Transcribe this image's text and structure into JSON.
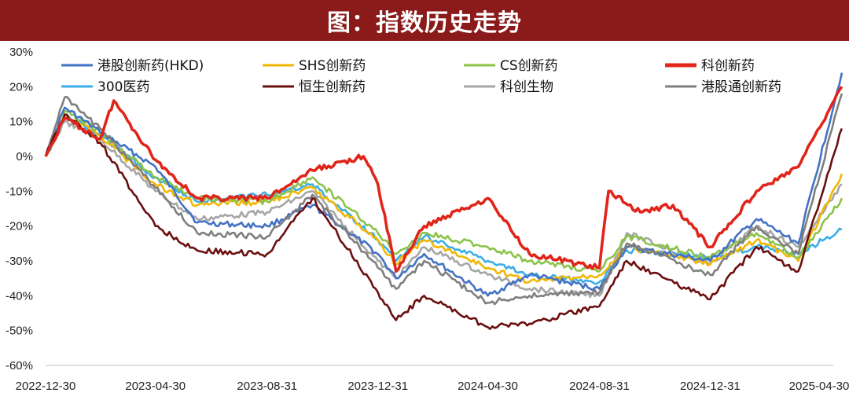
{
  "header": {
    "title": "图：指数历史走势"
  },
  "colors": {
    "banner": "#8B1A1A"
  },
  "chart_data": {
    "type": "line",
    "x_ticks": [
      "2022-12-30",
      "2023-04-30",
      "2023-08-31",
      "2023-12-31",
      "2024-04-30",
      "2024-08-31",
      "2024-12-31",
      "2025-04-30"
    ],
    "y_ticks": [
      "30%",
      "20%",
      "10%",
      "0%",
      "-10%",
      "-20%",
      "-30%",
      "-40%",
      "-50%",
      "-60%"
    ],
    "ylim": [
      -60,
      30
    ],
    "y_unit": "%",
    "legend_position": "top",
    "series": [
      {
        "name": "港股创新药(HKD)",
        "color": "#4472C4",
        "points": [
          [
            "2022-12-30",
            0
          ],
          [
            "2023-01-20",
            14
          ],
          [
            "2023-02-28",
            7
          ],
          [
            "2023-04-30",
            -3
          ],
          [
            "2023-06-15",
            -19
          ],
          [
            "2023-08-31",
            -20
          ],
          [
            "2023-10-20",
            -14
          ],
          [
            "2023-12-31",
            -28
          ],
          [
            "2024-01-20",
            -35
          ],
          [
            "2024-02-20",
            -28
          ],
          [
            "2024-04-30",
            -40
          ],
          [
            "2024-06-15",
            -34
          ],
          [
            "2024-08-31",
            -38
          ],
          [
            "2024-09-30",
            -26
          ],
          [
            "2024-12-31",
            -30
          ],
          [
            "2025-02-20",
            -18
          ],
          [
            "2025-04-07",
            -25
          ],
          [
            "2025-05-25",
            24
          ]
        ]
      },
      {
        "name": "SHS创新药",
        "color": "#F2B705",
        "points": [
          [
            "2022-12-30",
            0
          ],
          [
            "2023-01-20",
            12
          ],
          [
            "2023-02-28",
            6
          ],
          [
            "2023-04-30",
            -8
          ],
          [
            "2023-06-15",
            -14
          ],
          [
            "2023-08-31",
            -13
          ],
          [
            "2023-10-20",
            -9
          ],
          [
            "2023-12-31",
            -24
          ],
          [
            "2024-01-20",
            -31
          ],
          [
            "2024-02-20",
            -24
          ],
          [
            "2024-04-30",
            -32
          ],
          [
            "2024-06-15",
            -36
          ],
          [
            "2024-08-31",
            -34
          ],
          [
            "2024-09-30",
            -26
          ],
          [
            "2024-12-31",
            -31
          ],
          [
            "2025-02-20",
            -24
          ],
          [
            "2025-04-07",
            -30
          ],
          [
            "2025-05-25",
            -5
          ]
        ]
      },
      {
        "name": "CS创新药",
        "color": "#8BC34A",
        "points": [
          [
            "2022-12-30",
            0
          ],
          [
            "2023-01-20",
            13
          ],
          [
            "2023-02-28",
            7
          ],
          [
            "2023-04-30",
            -6
          ],
          [
            "2023-06-15",
            -12
          ],
          [
            "2023-08-31",
            -13
          ],
          [
            "2023-10-20",
            -6
          ],
          [
            "2023-12-31",
            -22
          ],
          [
            "2024-01-20",
            -28
          ],
          [
            "2024-02-20",
            -22
          ],
          [
            "2024-04-30",
            -26
          ],
          [
            "2024-06-15",
            -30
          ],
          [
            "2024-08-31",
            -33
          ],
          [
            "2024-09-30",
            -23
          ],
          [
            "2024-12-31",
            -29
          ],
          [
            "2025-02-20",
            -22
          ],
          [
            "2025-04-07",
            -29
          ],
          [
            "2025-05-25",
            -12
          ]
        ]
      },
      {
        "name": "科创新药",
        "color": "#E0251B",
        "points": [
          [
            "2022-12-30",
            0
          ],
          [
            "2023-01-20",
            11
          ],
          [
            "2023-02-28",
            5
          ],
          [
            "2023-03-15",
            16
          ],
          [
            "2023-04-30",
            -1
          ],
          [
            "2023-06-15",
            -12
          ],
          [
            "2023-08-31",
            -12
          ],
          [
            "2023-10-20",
            -4
          ],
          [
            "2023-12-15",
            0
          ],
          [
            "2023-12-31",
            -8
          ],
          [
            "2024-01-20",
            -33
          ],
          [
            "2024-02-20",
            -20
          ],
          [
            "2024-04-30",
            -12
          ],
          [
            "2024-06-15",
            -28
          ],
          [
            "2024-08-31",
            -32
          ],
          [
            "2024-09-10",
            -10
          ],
          [
            "2024-10-15",
            -16
          ],
          [
            "2024-11-20",
            -14
          ],
          [
            "2024-12-31",
            -26
          ],
          [
            "2025-02-20",
            -10
          ],
          [
            "2025-04-07",
            -3
          ],
          [
            "2025-05-25",
            20
          ]
        ]
      },
      {
        "name": "300医药",
        "color": "#3BAEE8",
        "points": [
          [
            "2022-12-30",
            0
          ],
          [
            "2023-01-20",
            12
          ],
          [
            "2023-02-28",
            6
          ],
          [
            "2023-04-30",
            -6
          ],
          [
            "2023-06-15",
            -13
          ],
          [
            "2023-08-31",
            -11
          ],
          [
            "2023-10-20",
            -8
          ],
          [
            "2023-12-31",
            -24
          ],
          [
            "2024-01-20",
            -30
          ],
          [
            "2024-02-20",
            -23
          ],
          [
            "2024-04-30",
            -30
          ],
          [
            "2024-06-15",
            -34
          ],
          [
            "2024-08-31",
            -36
          ],
          [
            "2024-09-30",
            -27
          ],
          [
            "2024-12-31",
            -29
          ],
          [
            "2025-02-20",
            -26
          ],
          [
            "2025-04-07",
            -28
          ],
          [
            "2025-05-25",
            -21
          ]
        ]
      },
      {
        "name": "恒生创新药",
        "color": "#6B0F0F",
        "points": [
          [
            "2022-12-30",
            0
          ],
          [
            "2023-01-20",
            12
          ],
          [
            "2023-02-28",
            4
          ],
          [
            "2023-04-30",
            -20
          ],
          [
            "2023-06-15",
            -27
          ],
          [
            "2023-08-31",
            -28
          ],
          [
            "2023-10-20",
            -12
          ],
          [
            "2023-12-31",
            -39
          ],
          [
            "2024-01-20",
            -47
          ],
          [
            "2024-02-20",
            -40
          ],
          [
            "2024-04-30",
            -49
          ],
          [
            "2024-06-15",
            -48
          ],
          [
            "2024-08-31",
            -43
          ],
          [
            "2024-09-30",
            -30
          ],
          [
            "2024-12-31",
            -41
          ],
          [
            "2025-02-20",
            -26
          ],
          [
            "2025-04-07",
            -33
          ],
          [
            "2025-05-25",
            8
          ]
        ]
      },
      {
        "name": "科创生物",
        "color": "#A6A6A6",
        "points": [
          [
            "2022-12-30",
            0
          ],
          [
            "2023-01-20",
            10
          ],
          [
            "2023-02-28",
            5
          ],
          [
            "2023-04-30",
            -10
          ],
          [
            "2023-06-15",
            -18
          ],
          [
            "2023-08-31",
            -16
          ],
          [
            "2023-10-20",
            -10
          ],
          [
            "2023-12-31",
            -30
          ],
          [
            "2024-01-20",
            -35
          ],
          [
            "2024-02-20",
            -26
          ],
          [
            "2024-04-30",
            -34
          ],
          [
            "2024-06-15",
            -38
          ],
          [
            "2024-08-31",
            -40
          ],
          [
            "2024-09-30",
            -22
          ],
          [
            "2024-12-31",
            -31
          ],
          [
            "2025-02-20",
            -20
          ],
          [
            "2025-04-07",
            -26
          ],
          [
            "2025-05-25",
            -8
          ]
        ]
      },
      {
        "name": "港股通创新药",
        "color": "#7F7F7F",
        "points": [
          [
            "2022-12-30",
            0
          ],
          [
            "2023-01-20",
            17
          ],
          [
            "2023-02-28",
            8
          ],
          [
            "2023-04-30",
            -9
          ],
          [
            "2023-06-15",
            -22
          ],
          [
            "2023-08-31",
            -23
          ],
          [
            "2023-10-20",
            -11
          ],
          [
            "2023-12-31",
            -32
          ],
          [
            "2024-01-20",
            -38
          ],
          [
            "2024-02-20",
            -30
          ],
          [
            "2024-04-30",
            -42
          ],
          [
            "2024-06-15",
            -40
          ],
          [
            "2024-08-31",
            -39
          ],
          [
            "2024-09-30",
            -25
          ],
          [
            "2024-12-31",
            -34
          ],
          [
            "2025-02-20",
            -20
          ],
          [
            "2025-04-07",
            -28
          ],
          [
            "2025-05-25",
            18
          ]
        ]
      }
    ]
  }
}
